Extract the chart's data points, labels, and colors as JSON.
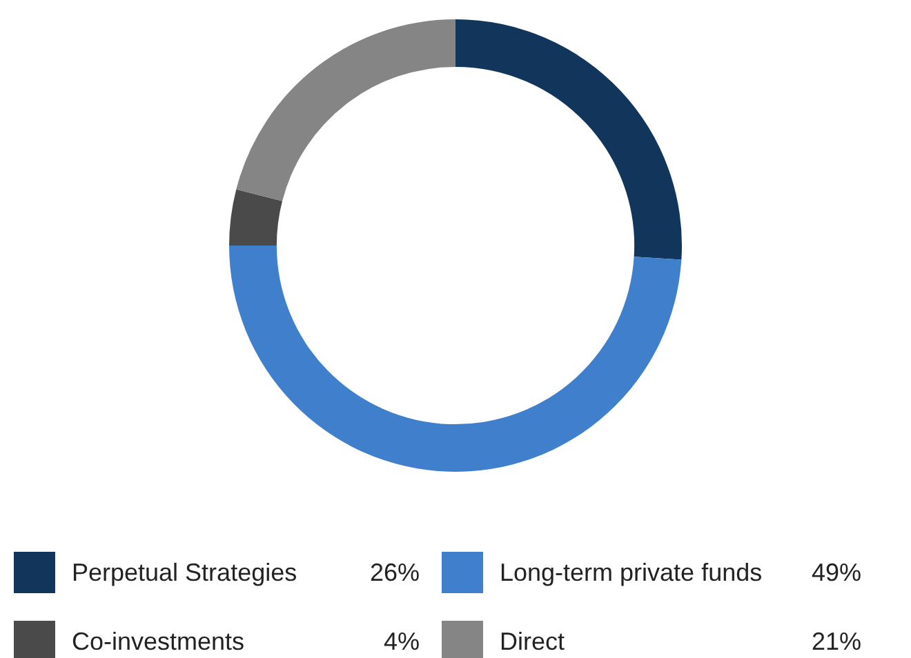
{
  "chart_data": {
    "type": "donut",
    "categories": [
      "Perpetual Strategies",
      "Long-term private funds",
      "Co-investments",
      "Direct"
    ],
    "values": [
      26,
      49,
      4,
      21
    ],
    "value_labels": [
      "26%",
      "49%",
      "4%",
      "21%"
    ],
    "colors": [
      "#12355b",
      "#3f7fcc",
      "#4a4a4a",
      "#858585"
    ],
    "legend": "bottom"
  }
}
